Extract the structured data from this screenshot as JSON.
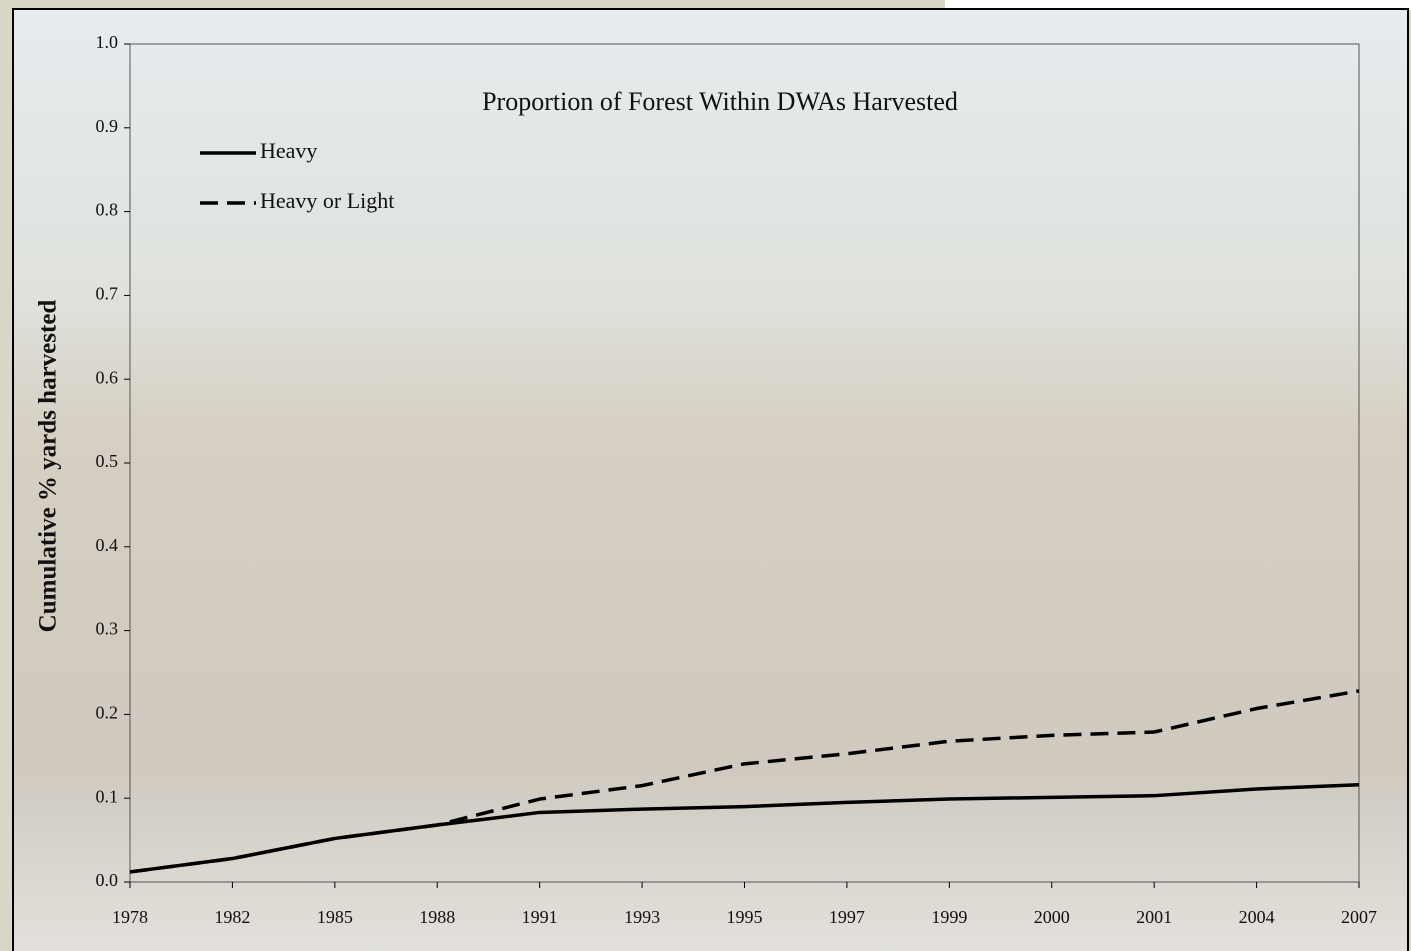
{
  "chart_data": {
    "type": "line",
    "title": "Proportion of Forest Within DWAs Harvested",
    "y_label": "Cumulative % yards harvested",
    "categories": [
      "1978",
      "1982",
      "1985",
      "1988",
      "1991",
      "1993",
      "1995",
      "1997",
      "1999",
      "2000",
      "2001",
      "2004",
      "2007"
    ],
    "series": [
      {
        "name": "Heavy",
        "color": "#000000",
        "dashed": false,
        "values": [
          0.012,
          0.028,
          0.052,
          0.068,
          0.083,
          0.087,
          0.09,
          0.095,
          0.099,
          0.101,
          0.103,
          0.111,
          0.116
        ]
      },
      {
        "name": "Heavy or Light",
        "color": "#000000",
        "dashed": true,
        "values": [
          0.012,
          0.028,
          0.052,
          0.068,
          0.099,
          0.115,
          0.141,
          0.153,
          0.168,
          0.175,
          0.179,
          0.207,
          0.228
        ]
      }
    ],
    "ylim": [
      0,
      1
    ],
    "yticks": [
      {
        "value": 0,
        "label": "0.0"
      },
      0.1,
      0.2,
      0.3,
      0.4,
      0.5,
      0.6,
      0.7,
      0.8,
      0.9,
      {
        "value": 1,
        "label": "1.0"
      }
    ],
    "grid": false,
    "legend": "top-left"
  }
}
